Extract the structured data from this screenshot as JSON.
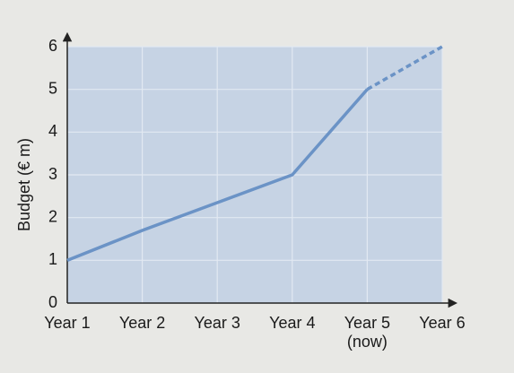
{
  "chart_data": {
    "type": "line",
    "y_label": "Budget (€ m)",
    "categories": [
      "Year 1",
      "Year 2",
      "Year 3",
      "Year 4",
      "Year 5\n(now)",
      "Year 6"
    ],
    "series": [
      {
        "color": "#6b93c6",
        "dashed": false,
        "values": [
          1,
          1.7,
          2.35,
          3,
          5,
          null
        ]
      },
      {
        "color": "#6b93c6",
        "dashed": true,
        "values": [
          null,
          null,
          null,
          null,
          5,
          6
        ]
      }
    ],
    "ylim": [
      0,
      6
    ],
    "yticks": [
      0,
      1,
      2,
      3,
      4,
      5,
      6
    ],
    "grid": true
  }
}
